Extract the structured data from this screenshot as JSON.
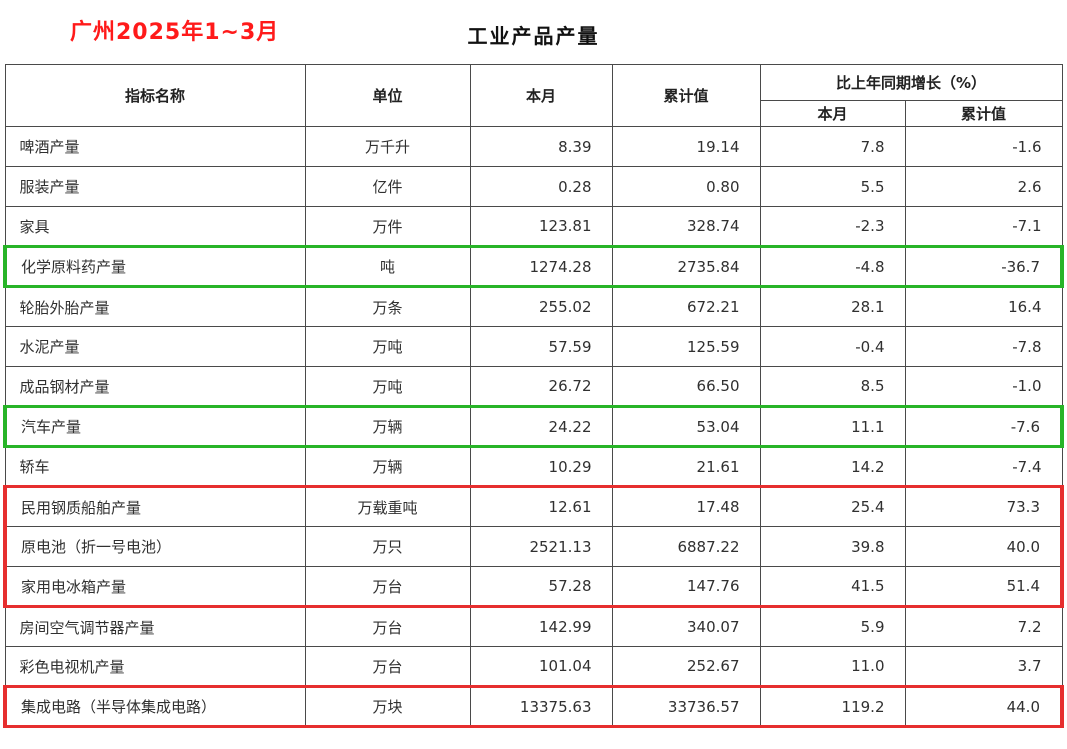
{
  "page": {
    "annotation": "广州2025年1~3月",
    "title": "工业产品产量"
  },
  "colors": {
    "annotation_red": "#ff1a1a",
    "highlight_green": "#28b428",
    "highlight_red": "#e62e2e"
  },
  "table": {
    "headers": {
      "indicator": "指标名称",
      "unit": "单位",
      "current_month": "本月",
      "cumulative": "累计值",
      "growth_group": "比上年同期增长（%）",
      "growth_current_month": "本月",
      "growth_cumulative": "累计值"
    },
    "rows": [
      {
        "indicator": "啤酒产量",
        "unit": "万千升",
        "current_month": "8.39",
        "cumulative": "19.14",
        "growth_month": "7.8",
        "growth_cumulative": "-1.6",
        "highlight": ""
      },
      {
        "indicator": "服装产量",
        "unit": "亿件",
        "current_month": "0.28",
        "cumulative": "0.80",
        "growth_month": "5.5",
        "growth_cumulative": "2.6",
        "highlight": ""
      },
      {
        "indicator": "家具",
        "unit": "万件",
        "current_month": "123.81",
        "cumulative": "328.74",
        "growth_month": "-2.3",
        "growth_cumulative": "-7.1",
        "highlight": ""
      },
      {
        "indicator": "化学原料药产量",
        "unit": "吨",
        "current_month": "1274.28",
        "cumulative": "2735.84",
        "growth_month": "-4.8",
        "growth_cumulative": "-36.7",
        "highlight": "green"
      },
      {
        "indicator": "轮胎外胎产量",
        "unit": "万条",
        "current_month": "255.02",
        "cumulative": "672.21",
        "growth_month": "28.1",
        "growth_cumulative": "16.4",
        "highlight": ""
      },
      {
        "indicator": "水泥产量",
        "unit": "万吨",
        "current_month": "57.59",
        "cumulative": "125.59",
        "growth_month": "-0.4",
        "growth_cumulative": "-7.8",
        "highlight": ""
      },
      {
        "indicator": "成品钢材产量",
        "unit": "万吨",
        "current_month": "26.72",
        "cumulative": "66.50",
        "growth_month": "8.5",
        "growth_cumulative": "-1.0",
        "highlight": ""
      },
      {
        "indicator": "汽车产量",
        "unit": "万辆",
        "current_month": "24.22",
        "cumulative": "53.04",
        "growth_month": "11.1",
        "growth_cumulative": "-7.6",
        "highlight": "green"
      },
      {
        "indicator": "轿车",
        "unit": "万辆",
        "current_month": "10.29",
        "cumulative": "21.61",
        "growth_month": "14.2",
        "growth_cumulative": "-7.4",
        "highlight": ""
      },
      {
        "indicator": "民用钢质船舶产量",
        "unit": "万载重吨",
        "current_month": "12.61",
        "cumulative": "17.48",
        "growth_month": "25.4",
        "growth_cumulative": "73.3",
        "highlight": "red-top"
      },
      {
        "indicator": "原电池（折一号电池）",
        "unit": "万只",
        "current_month": "2521.13",
        "cumulative": "6887.22",
        "growth_month": "39.8",
        "growth_cumulative": "40.0",
        "highlight": "red-mid"
      },
      {
        "indicator": "家用电冰箱产量",
        "unit": "万台",
        "current_month": "57.28",
        "cumulative": "147.76",
        "growth_month": "41.5",
        "growth_cumulative": "51.4",
        "highlight": "red-bottom"
      },
      {
        "indicator": "房间空气调节器产量",
        "unit": "万台",
        "current_month": "142.99",
        "cumulative": "340.07",
        "growth_month": "5.9",
        "growth_cumulative": "7.2",
        "highlight": ""
      },
      {
        "indicator": "彩色电视机产量",
        "unit": "万台",
        "current_month": "101.04",
        "cumulative": "252.67",
        "growth_month": "11.0",
        "growth_cumulative": "3.7",
        "highlight": ""
      },
      {
        "indicator": "集成电路（半导体集成电路）",
        "unit": "万块",
        "current_month": "13375.63",
        "cumulative": "33736.57",
        "growth_month": "119.2",
        "growth_cumulative": "44.0",
        "highlight": "red-single"
      }
    ]
  }
}
